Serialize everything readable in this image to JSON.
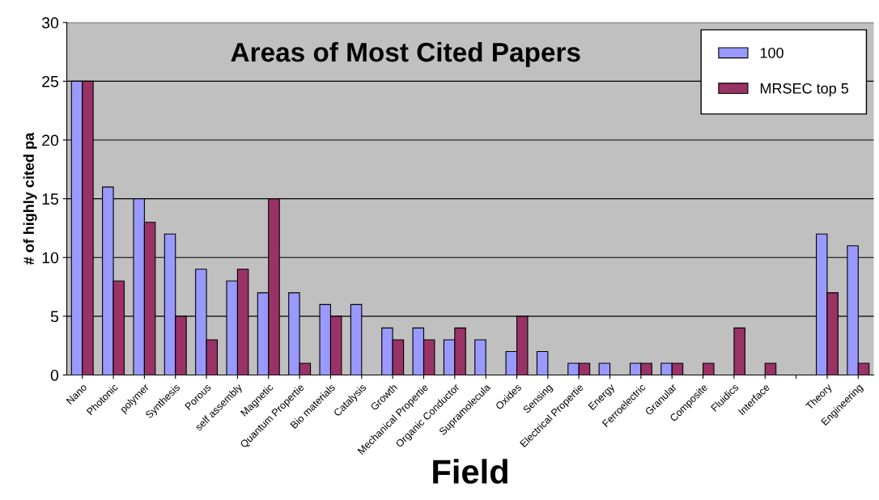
{
  "chart_data": {
    "type": "bar",
    "title": "Areas of Most Cited Papers",
    "xlabel": "Field",
    "ylabel": "# of highly cited pa",
    "categories": [
      "Nano",
      "Photonic",
      "polymer",
      "Synthesis",
      "Porous",
      "self assembly",
      "Magnetic",
      "Quantum Propertie",
      "Bio materials",
      "Catalysis",
      "Growth",
      "Mechanical Propertie",
      "Organic Conductor",
      "Supramolecula",
      "Oxides",
      "Sensing",
      "Electrical Propertie",
      "Energy",
      "Ferroelectric",
      "Granular",
      "Composite",
      "Fluidics",
      "Interface",
      null,
      "Theory",
      "Engineering"
    ],
    "series": [
      {
        "name": "100",
        "color": "#9999ff",
        "values": [
          25,
          16,
          15,
          12,
          9,
          8,
          7,
          7,
          6,
          6,
          4,
          4,
          3,
          3,
          2,
          2,
          1,
          1,
          1,
          1,
          null,
          null,
          null,
          null,
          12,
          11
        ]
      },
      {
        "name": "MRSEC top 5",
        "color": "#993366",
        "values": [
          25,
          8,
          13,
          5,
          3,
          9,
          15,
          1,
          5,
          null,
          3,
          3,
          4,
          null,
          5,
          null,
          1,
          null,
          1,
          1,
          1,
          4,
          1,
          null,
          7,
          1
        ]
      }
    ],
    "ylim": [
      0,
      30
    ],
    "yticks": [
      0,
      5,
      10,
      15,
      20,
      25,
      30
    ],
    "grid": "y",
    "legend": "top right"
  }
}
